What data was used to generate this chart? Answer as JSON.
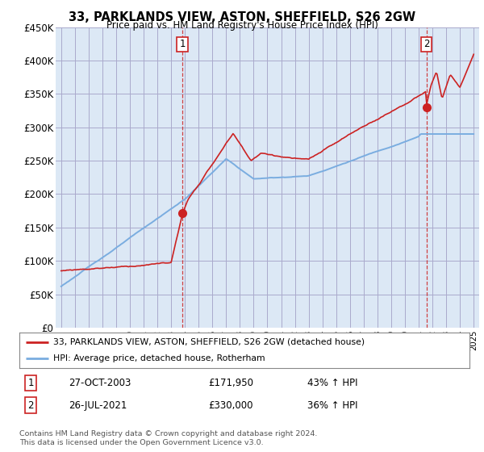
{
  "title": "33, PARKLANDS VIEW, ASTON, SHEFFIELD, S26 2GW",
  "subtitle": "Price paid vs. HM Land Registry's House Price Index (HPI)",
  "legend_line1": "33, PARKLANDS VIEW, ASTON, SHEFFIELD, S26 2GW (detached house)",
  "legend_line2": "HPI: Average price, detached house, Rotherham",
  "sale1_label": "1",
  "sale1_date": "27-OCT-2003",
  "sale1_price": "£171,950",
  "sale1_hpi": "43% ↑ HPI",
  "sale2_label": "2",
  "sale2_date": "26-JUL-2021",
  "sale2_price": "£330,000",
  "sale2_hpi": "36% ↑ HPI",
  "footer": "Contains HM Land Registry data © Crown copyright and database right 2024.\nThis data is licensed under the Open Government Licence v3.0.",
  "red_color": "#cc2222",
  "blue_color": "#7aade0",
  "background_color": "#ffffff",
  "chart_bg_color": "#dce8f5",
  "grid_color": "#aaaacc",
  "ylim": [
    0,
    450000
  ],
  "yticks": [
    0,
    50000,
    100000,
    150000,
    200000,
    250000,
    300000,
    350000,
    400000,
    450000
  ],
  "sale1_x": 2003.82,
  "sale1_y": 171950,
  "sale2_x": 2021.57,
  "sale2_y": 330000,
  "xlim_left": 1994.6,
  "xlim_right": 2025.4
}
